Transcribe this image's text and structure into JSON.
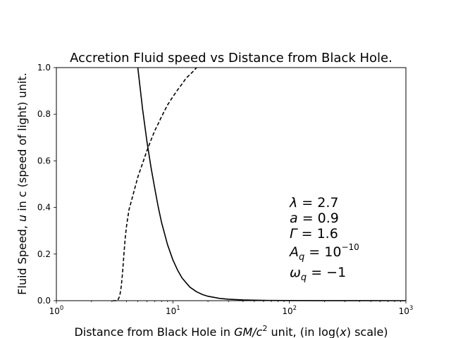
{
  "chart_data": {
    "type": "line",
    "title": "Accretion Fluid speed vs Distance from Black Hole.",
    "xlabel": {
      "pre": "Distance from Black Hole in ",
      "math_gm": "GM",
      "math_c": "/c",
      "math_sup": "2",
      "mid": " unit, (in log(",
      "math_x": "x",
      "post": ") scale)"
    },
    "ylabel": {
      "pre": "Fluid Speed, ",
      "math_u": "u",
      "post": " in c (speed of light) unit."
    },
    "xscale": "log",
    "xlim": [
      1,
      1000
    ],
    "ylim": [
      0.0,
      1.0
    ],
    "x_ticks": [
      {
        "value": 1,
        "base": "10",
        "exp": "0"
      },
      {
        "value": 10,
        "base": "10",
        "exp": "1"
      },
      {
        "value": 100,
        "base": "10",
        "exp": "2"
      },
      {
        "value": 1000,
        "base": "10",
        "exp": "3"
      }
    ],
    "y_ticks": [
      {
        "value": 0.0,
        "label": "0.0"
      },
      {
        "value": 0.2,
        "label": "0.2"
      },
      {
        "value": 0.4,
        "label": "0.4"
      },
      {
        "value": 0.6,
        "label": "0.6"
      },
      {
        "value": 0.8,
        "label": "0.8"
      },
      {
        "value": 1.0,
        "label": "1.0"
      }
    ],
    "grid": false,
    "series": [
      {
        "style": "solid",
        "color": "#000000",
        "x": [
          5.0,
          5.5,
          6.0,
          6.5,
          7.0,
          7.5,
          8.0,
          9.0,
          10.0,
          11.0,
          12.0,
          14.0,
          16.0,
          18.0,
          20.0,
          25.0,
          30.0,
          40.0,
          50.0,
          70.0,
          100.0,
          200.0,
          500.0,
          1000.0
        ],
        "y": [
          1.0,
          0.82,
          0.68,
          0.57,
          0.48,
          0.4,
          0.335,
          0.24,
          0.175,
          0.13,
          0.097,
          0.058,
          0.038,
          0.026,
          0.019,
          0.01,
          0.0062,
          0.0032,
          0.002,
          0.001,
          0.0006,
          0.0002,
          5e-05,
          1e-05
        ]
      },
      {
        "style": "dashed",
        "color": "#000000",
        "x": [
          3.05,
          3.35,
          3.5,
          3.6,
          3.7,
          3.8,
          3.9,
          4.0,
          4.2,
          4.5,
          5.0,
          5.5,
          6.0,
          6.5,
          7.0,
          7.5,
          8.0,
          9.0,
          10.0,
          11.0,
          12.0,
          13.0,
          14.0,
          15.0,
          16.0
        ],
        "y": [
          0.0,
          0.0,
          0.02,
          0.06,
          0.12,
          0.2,
          0.27,
          0.32,
          0.39,
          0.445,
          0.53,
          0.59,
          0.645,
          0.69,
          0.73,
          0.76,
          0.79,
          0.84,
          0.875,
          0.905,
          0.93,
          0.955,
          0.97,
          0.985,
          1.0
        ]
      }
    ],
    "annotations": [
      {
        "sym": "λ",
        "sub": "",
        "eq": " = 2.7",
        "sup": "",
        "tail": ""
      },
      {
        "sym": "a",
        "sub": "",
        "eq": " = 0.9",
        "sup": "",
        "tail": ""
      },
      {
        "sym": "Γ",
        "sub": "",
        "eq": " = 1.6",
        "sup": "",
        "tail": ""
      },
      {
        "sym": "A",
        "sub": "q",
        "eq": " = 10",
        "sup": "−10",
        "tail": ""
      },
      {
        "sym": "ω",
        "sub": "q",
        "eq": " = −1",
        "sup": "",
        "tail": ""
      }
    ]
  }
}
